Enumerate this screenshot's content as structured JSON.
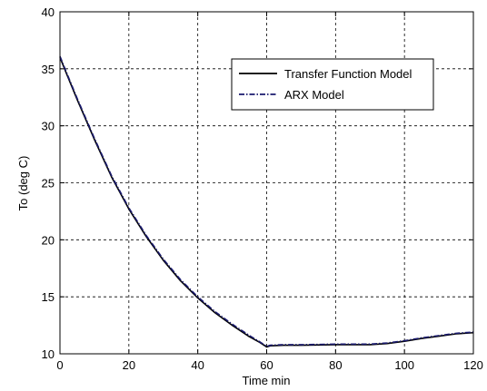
{
  "chart_data": {
    "type": "line",
    "xlabel": "Time min",
    "ylabel": "To (deg C)",
    "xlim": [
      0,
      120
    ],
    "ylim": [
      10,
      40
    ],
    "xticks": [
      0,
      20,
      40,
      60,
      80,
      100,
      120
    ],
    "yticks": [
      10,
      15,
      20,
      25,
      30,
      35,
      40
    ],
    "grid": true,
    "legend_position": "top-right",
    "series": [
      {
        "name": "Transfer Function Model",
        "style": "solid",
        "color": "#000000",
        "x": [
          0,
          2,
          5,
          10,
          15,
          20,
          25,
          30,
          35,
          40,
          45,
          50,
          55,
          58,
          60,
          61,
          65,
          70,
          80,
          90,
          95,
          100,
          105,
          110,
          115,
          120
        ],
        "y": [
          36.0,
          34.5,
          32.3,
          28.8,
          25.5,
          22.7,
          20.3,
          18.2,
          16.4,
          14.9,
          13.6,
          12.5,
          11.5,
          11.0,
          10.6,
          10.7,
          10.75,
          10.75,
          10.8,
          10.8,
          10.9,
          11.1,
          11.35,
          11.55,
          11.75,
          11.85
        ]
      },
      {
        "name": "ARX Model",
        "style": "dashdot",
        "color": "#1a1a6e",
        "x": [
          0,
          2,
          5,
          10,
          15,
          20,
          25,
          30,
          35,
          40,
          45,
          50,
          55,
          58,
          60,
          61,
          65,
          70,
          80,
          90,
          95,
          100,
          105,
          110,
          115,
          120
        ],
        "y": [
          36.1,
          34.6,
          32.4,
          28.9,
          25.6,
          22.8,
          20.4,
          18.3,
          16.5,
          15.0,
          13.7,
          12.6,
          11.6,
          11.05,
          10.65,
          10.75,
          10.8,
          10.8,
          10.85,
          10.85,
          10.95,
          11.15,
          11.4,
          11.6,
          11.8,
          11.9
        ]
      }
    ]
  }
}
